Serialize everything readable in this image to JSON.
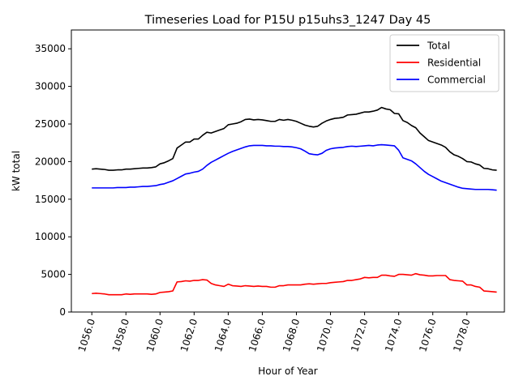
{
  "chart_data": {
    "type": "line",
    "title": "Timeseries Load for P15U p15uhs3_1247  Day 45",
    "xlabel": "Hour of Year",
    "ylabel": "kW total",
    "xlim": [
      1054.8,
      1080.2
    ],
    "ylim": [
      0,
      37500
    ],
    "x_ticks": [
      1056,
      1058,
      1060,
      1062,
      1064,
      1066,
      1068,
      1070,
      1072,
      1074,
      1076,
      1078
    ],
    "x_tick_labels": [
      "1056.0",
      "1058.0",
      "1060.0",
      "1062.0",
      "1064.0",
      "1066.0",
      "1068.0",
      "1070.0",
      "1072.0",
      "1074.0",
      "1076.0",
      "1078.0"
    ],
    "y_ticks": [
      0,
      5000,
      10000,
      15000,
      20000,
      25000,
      30000,
      35000
    ],
    "y_tick_labels": [
      "0",
      "5000",
      "10000",
      "15000",
      "20000",
      "25000",
      "30000",
      "35000"
    ],
    "legend_position": "top-right",
    "x": [
      1056.0,
      1056.25,
      1056.5,
      1056.75,
      1057.0,
      1057.25,
      1057.5,
      1057.75,
      1058.0,
      1058.25,
      1058.5,
      1058.75,
      1059.0,
      1059.25,
      1059.5,
      1059.75,
      1060.0,
      1060.25,
      1060.5,
      1060.75,
      1061.0,
      1061.25,
      1061.5,
      1061.75,
      1062.0,
      1062.25,
      1062.5,
      1062.75,
      1063.0,
      1063.25,
      1063.5,
      1063.75,
      1064.0,
      1064.25,
      1064.5,
      1064.75,
      1065.0,
      1065.25,
      1065.5,
      1065.75,
      1066.0,
      1066.25,
      1066.5,
      1066.75,
      1067.0,
      1067.25,
      1067.5,
      1067.75,
      1068.0,
      1068.25,
      1068.5,
      1068.75,
      1069.0,
      1069.25,
      1069.5,
      1069.75,
      1070.0,
      1070.25,
      1070.5,
      1070.75,
      1071.0,
      1071.25,
      1071.5,
      1071.75,
      1072.0,
      1072.25,
      1072.5,
      1072.75,
      1073.0,
      1073.25,
      1073.5,
      1073.75,
      1074.0,
      1074.25,
      1074.5,
      1074.75,
      1075.0,
      1075.25,
      1075.5,
      1075.75,
      1076.0,
      1076.25,
      1076.5,
      1076.75,
      1077.0,
      1077.25,
      1077.5,
      1077.75,
      1078.0,
      1078.25,
      1078.5,
      1078.75,
      1079.0,
      1079.25,
      1079.5,
      1079.75
    ],
    "series": [
      {
        "name": "Total",
        "color": "#000000",
        "values": [
          19000,
          19050,
          19000,
          18950,
          18850,
          18850,
          18900,
          18900,
          19000,
          19000,
          19050,
          19100,
          19150,
          19150,
          19200,
          19300,
          19700,
          19850,
          20100,
          20400,
          21800,
          22200,
          22600,
          22600,
          23000,
          23000,
          23500,
          23900,
          23800,
          24000,
          24200,
          24400,
          24900,
          25000,
          25100,
          25300,
          25600,
          25650,
          25550,
          25600,
          25550,
          25450,
          25350,
          25350,
          25600,
          25500,
          25600,
          25500,
          25350,
          25100,
          24850,
          24700,
          24600,
          24700,
          25100,
          25400,
          25600,
          25750,
          25800,
          25900,
          26200,
          26250,
          26300,
          26450,
          26600,
          26600,
          26700,
          26850,
          27200,
          27000,
          26900,
          26400,
          26350,
          25450,
          25200,
          24800,
          24500,
          23800,
          23300,
          22800,
          22600,
          22400,
          22200,
          21900,
          21300,
          20900,
          20700,
          20400,
          20000,
          19950,
          19700,
          19550,
          19100,
          19050,
          18900,
          18850
        ]
      },
      {
        "name": "Residential",
        "color": "#ff0000",
        "values": [
          2450,
          2500,
          2450,
          2400,
          2300,
          2300,
          2300,
          2300,
          2400,
          2350,
          2400,
          2400,
          2400,
          2400,
          2350,
          2400,
          2600,
          2650,
          2700,
          2800,
          4000,
          4050,
          4150,
          4100,
          4200,
          4200,
          4300,
          4250,
          3800,
          3600,
          3500,
          3400,
          3700,
          3500,
          3450,
          3400,
          3500,
          3450,
          3400,
          3450,
          3400,
          3400,
          3300,
          3300,
          3500,
          3500,
          3600,
          3600,
          3600,
          3600,
          3700,
          3750,
          3700,
          3750,
          3800,
          3800,
          3900,
          3950,
          4000,
          4050,
          4200,
          4200,
          4300,
          4400,
          4600,
          4550,
          4600,
          4600,
          4900,
          4900,
          4800,
          4750,
          5000,
          5000,
          4950,
          4900,
          5100,
          4950,
          4900,
          4800,
          4800,
          4850,
          4850,
          4850,
          4300,
          4200,
          4150,
          4100,
          3600,
          3600,
          3400,
          3300,
          2800,
          2750,
          2700,
          2650
        ]
      },
      {
        "name": "Commercial",
        "color": "#0000ff",
        "values": [
          16500,
          16500,
          16500,
          16500,
          16500,
          16500,
          16550,
          16550,
          16550,
          16600,
          16600,
          16650,
          16700,
          16700,
          16750,
          16800,
          16950,
          17050,
          17250,
          17450,
          17750,
          18050,
          18350,
          18450,
          18600,
          18700,
          19000,
          19500,
          19900,
          20200,
          20500,
          20800,
          21100,
          21350,
          21550,
          21750,
          21950,
          22100,
          22150,
          22150,
          22150,
          22100,
          22100,
          22050,
          22050,
          22000,
          22000,
          21950,
          21850,
          21700,
          21400,
          21050,
          20950,
          20900,
          21100,
          21500,
          21700,
          21800,
          21850,
          21900,
          22000,
          22050,
          22000,
          22050,
          22100,
          22150,
          22100,
          22200,
          22250,
          22200,
          22150,
          22100,
          21500,
          20500,
          20300,
          20100,
          19700,
          19200,
          18700,
          18300,
          18000,
          17700,
          17400,
          17200,
          17000,
          16800,
          16600,
          16450,
          16400,
          16350,
          16300,
          16300,
          16300,
          16300,
          16250,
          16200
        ]
      }
    ]
  }
}
